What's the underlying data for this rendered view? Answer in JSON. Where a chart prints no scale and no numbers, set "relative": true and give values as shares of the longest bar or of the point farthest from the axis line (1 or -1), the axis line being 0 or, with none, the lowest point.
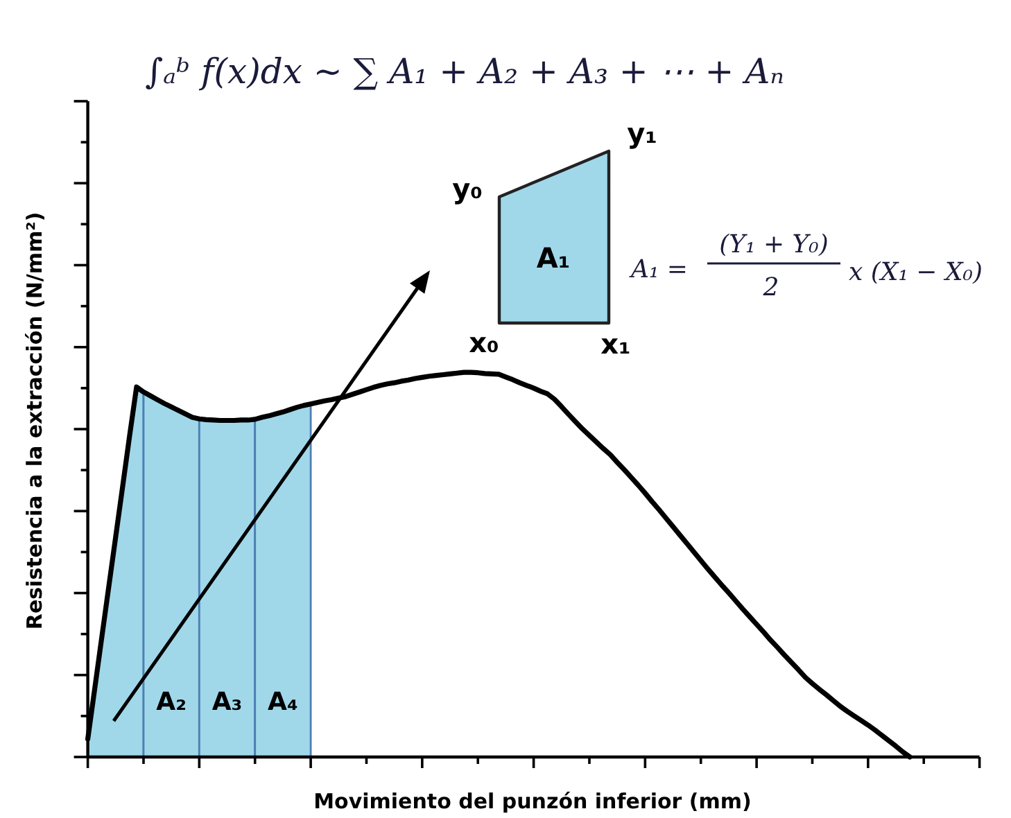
{
  "chart_data": {
    "type": "line",
    "title": "∫ₐᵇ f(x)dx ~ ∑ A₁ + A₂ + A₃ + ⋯ + Aₙ",
    "xlabel": "Movimiento del punzón inferior (mm)",
    "ylabel": "Resistencia a la extracción (N/mm²)",
    "relative": true,
    "categories": [
      null,
      null,
      null,
      null,
      null,
      null,
      null,
      null,
      null,
      null,
      null,
      null,
      null,
      null,
      null,
      null,
      null,
      null,
      null,
      null,
      null,
      null,
      null,
      null,
      null,
      null,
      null,
      null,
      null,
      null,
      null,
      null,
      null,
      null,
      null,
      null,
      null,
      null,
      null,
      null,
      null,
      null,
      null,
      null,
      null,
      null,
      null,
      null,
      null,
      null,
      null,
      null,
      null,
      null,
      null,
      null,
      null,
      null,
      null,
      null,
      null,
      null,
      null,
      null,
      null,
      null,
      null,
      null,
      null,
      null,
      null,
      null,
      null,
      null,
      null,
      null,
      null,
      null,
      null,
      null,
      null,
      null,
      null,
      null,
      null,
      null,
      null,
      null,
      null,
      null,
      null,
      null,
      null,
      null,
      null,
      null,
      null,
      null,
      null,
      null,
      null,
      null,
      null,
      null,
      null,
      null,
      null,
      null,
      null,
      null,
      null,
      null,
      null,
      null,
      null,
      null,
      null,
      null,
      null,
      null,
      null,
      null,
      null,
      null,
      null,
      null,
      null,
      null,
      null
    ],
    "series": [
      {
        "type": "area",
        "color": "#a0d8ea",
        "values": [
          0.047,
          0.178,
          0.31,
          0.441,
          0.572,
          0.703,
          0.835,
          0.962,
          0.949,
          null,
          null,
          null,
          null,
          null,
          null,
          null,
          null,
          null,
          null,
          null,
          null,
          null,
          null,
          null,
          null,
          null,
          null,
          null,
          null,
          null,
          null,
          null,
          null,
          null,
          null,
          null,
          null,
          null,
          null,
          null,
          null,
          null,
          null,
          null,
          null,
          null,
          null,
          null,
          null,
          null,
          null,
          null,
          null,
          null,
          null,
          null,
          null,
          null,
          null,
          null,
          null,
          null,
          null,
          null,
          null,
          null,
          null,
          null,
          null,
          null,
          null,
          null,
          null,
          null,
          null,
          null,
          null,
          null,
          null,
          null,
          null,
          null,
          null,
          null,
          null,
          null,
          null,
          null,
          null,
          null,
          null,
          null,
          null,
          null,
          null,
          null,
          null,
          null,
          null,
          null,
          null,
          null,
          null,
          null,
          null,
          null,
          null,
          null,
          null,
          null,
          null,
          null,
          null,
          null,
          null,
          null,
          null,
          null,
          null,
          null,
          null,
          null,
          null,
          null,
          null,
          null,
          null,
          null,
          null
        ]
      },
      {
        "type": "area",
        "name": "A₂",
        "color": "#a0d8ea",
        "values": [
          null,
          null,
          null,
          null,
          null,
          null,
          null,
          null,
          0.949,
          0.939,
          0.929,
          0.919,
          0.91,
          0.901,
          0.892,
          0.883,
          0.879,
          null,
          null,
          null,
          null,
          null,
          null,
          null,
          null,
          null,
          null,
          null,
          null,
          null,
          null,
          null,
          null,
          null,
          null,
          null,
          null,
          null,
          null,
          null,
          null,
          null,
          null,
          null,
          null,
          null,
          null,
          null,
          null,
          null,
          null,
          null,
          null,
          null,
          null,
          null,
          null,
          null,
          null,
          null,
          null,
          null,
          null,
          null,
          null,
          null,
          null,
          null,
          null,
          null,
          null,
          null,
          null,
          null,
          null,
          null,
          null,
          null,
          null,
          null,
          null,
          null,
          null,
          null,
          null,
          null,
          null,
          null,
          null,
          null,
          null,
          null,
          null,
          null,
          null,
          null,
          null,
          null,
          null,
          null,
          null,
          null,
          null,
          null,
          null,
          null,
          null,
          null,
          null,
          null,
          null,
          null,
          null,
          null,
          null,
          null,
          null,
          null,
          null,
          null,
          null,
          null,
          null,
          null,
          null,
          null,
          null,
          null,
          null
        ]
      },
      {
        "type": "area",
        "name": "A₃",
        "color": "#a0d8ea",
        "values": [
          null,
          null,
          null,
          null,
          null,
          null,
          null,
          null,
          null,
          null,
          null,
          null,
          null,
          null,
          null,
          null,
          0.879,
          0.877,
          0.876,
          0.875,
          0.875,
          0.875,
          0.876,
          0.876,
          0.878,
          null,
          null,
          null,
          null,
          null,
          null,
          null,
          null,
          null,
          null,
          null,
          null,
          null,
          null,
          null,
          null,
          null,
          null,
          null,
          null,
          null,
          null,
          null,
          null,
          null,
          null,
          null,
          null,
          null,
          null,
          null,
          null,
          null,
          null,
          null,
          null,
          null,
          null,
          null,
          null,
          null,
          null,
          null,
          null,
          null,
          null,
          null,
          null,
          null,
          null,
          null,
          null,
          null,
          null,
          null,
          null,
          null,
          null,
          null,
          null,
          null,
          null,
          null,
          null,
          null,
          null,
          null,
          null,
          null,
          null,
          null,
          null,
          null,
          null,
          null,
          null,
          null,
          null,
          null,
          null,
          null,
          null,
          null,
          null,
          null,
          null,
          null,
          null,
          null,
          null,
          null,
          null,
          null,
          null,
          null,
          null,
          null,
          null,
          null,
          null,
          null,
          null,
          null,
          null
        ]
      },
      {
        "type": "area",
        "name": "A₄",
        "color": "#a0d8ea",
        "values": [
          null,
          null,
          null,
          null,
          null,
          null,
          null,
          null,
          null,
          null,
          null,
          null,
          null,
          null,
          null,
          null,
          null,
          null,
          null,
          null,
          null,
          null,
          null,
          null,
          0.878,
          0.883,
          0.887,
          0.892,
          0.897,
          0.903,
          0.909,
          0.914,
          0.918,
          null,
          null,
          null,
          null,
          null,
          null,
          null,
          null,
          null,
          null,
          null,
          null,
          null,
          null,
          null,
          null,
          null,
          null,
          null,
          null,
          null,
          null,
          null,
          null,
          null,
          null,
          null,
          null,
          null,
          null,
          null,
          null,
          null,
          null,
          null,
          null,
          null,
          null,
          null,
          null,
          null,
          null,
          null,
          null,
          null,
          null,
          null,
          null,
          null,
          null,
          null,
          null,
          null,
          null,
          null,
          null,
          null,
          null,
          null,
          null,
          null,
          null,
          null,
          null,
          null,
          null,
          null,
          null,
          null,
          null,
          null,
          null,
          null,
          null,
          null,
          null,
          null,
          null,
          null,
          null,
          null,
          null,
          null,
          null,
          null,
          null,
          null,
          null,
          null,
          null,
          null,
          null,
          null,
          null,
          null,
          null
        ]
      },
      {
        "color": "#000000",
        "values": [
          0.047,
          0.178,
          0.31,
          0.441,
          0.572,
          0.703,
          0.835,
          0.962,
          0.949,
          0.939,
          0.929,
          0.919,
          0.91,
          0.901,
          0.892,
          0.883,
          0.879,
          0.877,
          0.876,
          0.875,
          0.875,
          0.875,
          0.876,
          0.876,
          0.878,
          0.883,
          0.887,
          0.892,
          0.897,
          0.903,
          0.909,
          0.914,
          0.918,
          0.922,
          0.926,
          0.929,
          0.933,
          0.937,
          0.943,
          0.949,
          0.955,
          0.961,
          0.966,
          0.97,
          0.973,
          0.977,
          0.98,
          0.984,
          0.987,
          0.99,
          0.992,
          0.994,
          0.996,
          0.998,
          1.0,
          1.0,
          0.999,
          0.997,
          0.996,
          0.995,
          0.988,
          0.981,
          0.973,
          0.966,
          0.959,
          0.951,
          0.944,
          0.93,
          0.911,
          0.891,
          0.872,
          0.853,
          0.836,
          0.819,
          0.802,
          0.786,
          0.766,
          0.747,
          0.727,
          0.707,
          0.686,
          0.664,
          0.643,
          0.621,
          0.599,
          0.577,
          0.555,
          0.533,
          0.511,
          0.489,
          0.468,
          0.447,
          0.427,
          0.406,
          0.385,
          0.365,
          0.345,
          0.325,
          0.304,
          0.285,
          0.265,
          0.246,
          0.227,
          0.207,
          0.191,
          0.176,
          0.162,
          0.147,
          0.132,
          0.119,
          0.107,
          0.095,
          0.083,
          0.07,
          0.056,
          0.042,
          0.028,
          0.013,
          0,
          null,
          null,
          null,
          null,
          null,
          null,
          null,
          null,
          null,
          null
        ]
      }
    ],
    "annotations": [
      "y₀",
      "y₁",
      "A₁",
      "x₀",
      "x₁",
      "A₁ =",
      "(Y₁ + Y₀)",
      "2",
      "x (X₁ − X₀)"
    ]
  }
}
